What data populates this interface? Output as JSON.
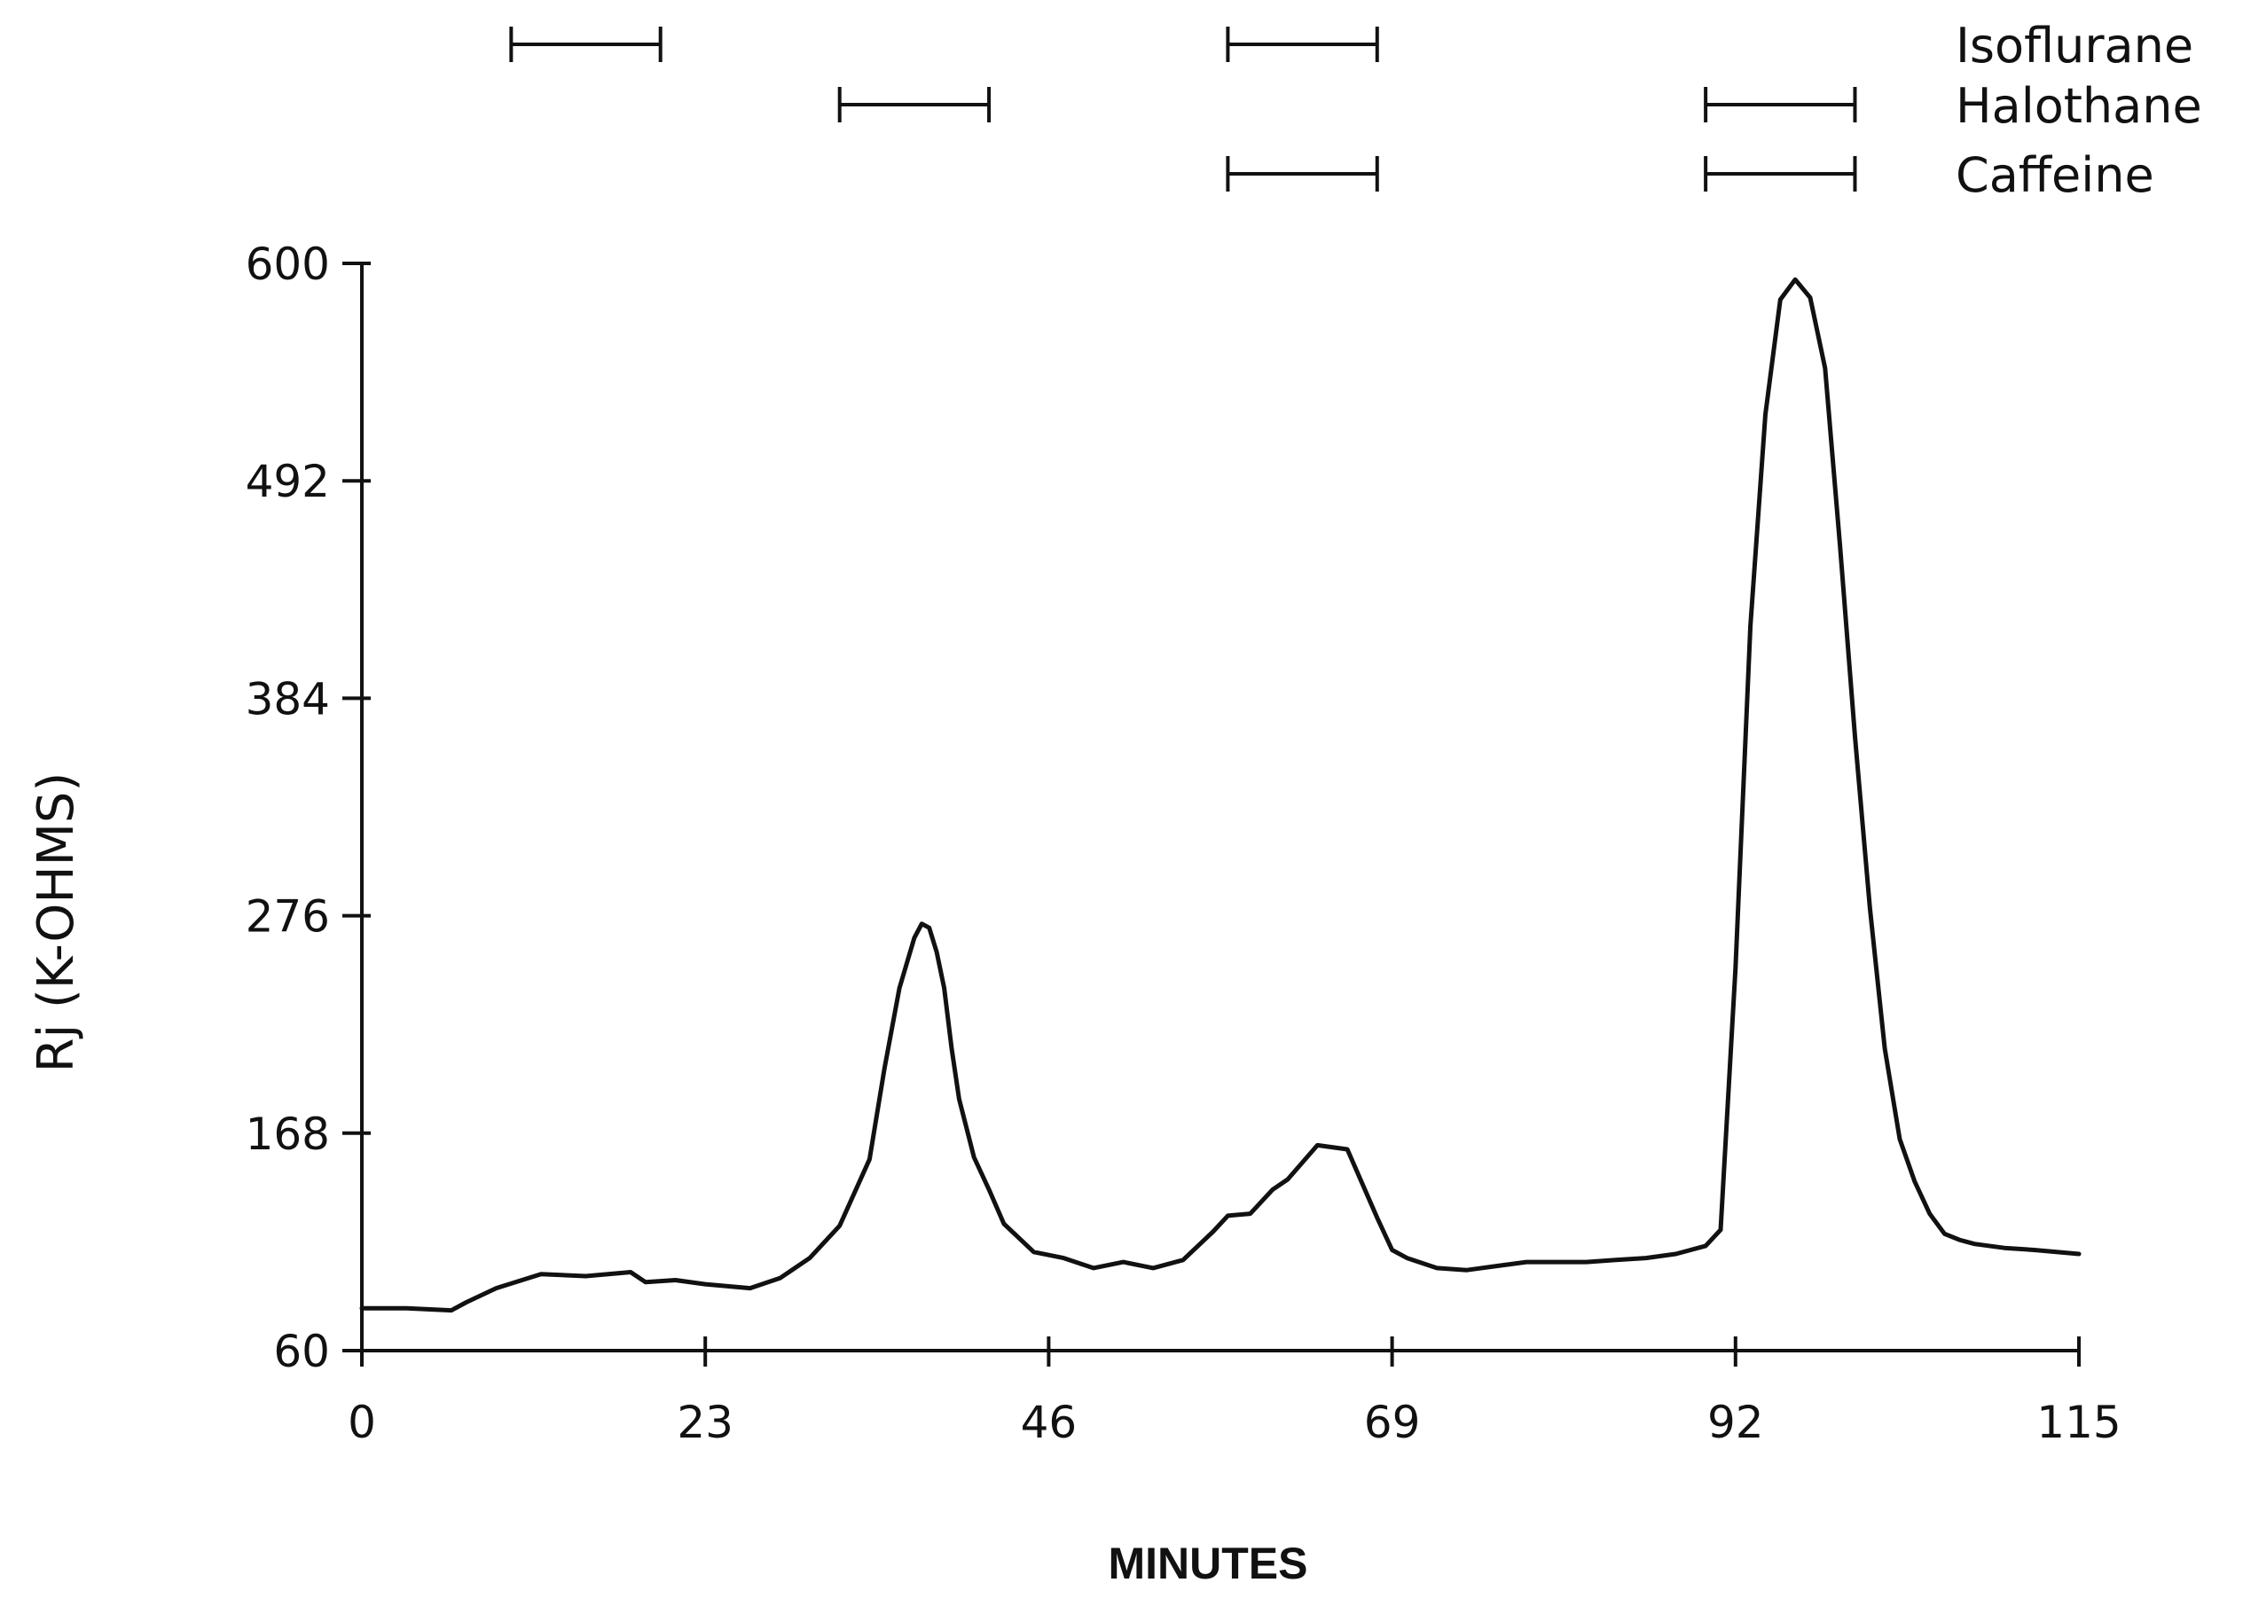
{
  "chart_data": {
    "type": "line",
    "title": "",
    "xlabel": "MINUTES",
    "ylabel": "Rj (K-OHMS)",
    "xlim": [
      0,
      115
    ],
    "ylim": [
      60,
      600
    ],
    "x_ticks": [
      0,
      23,
      46,
      69,
      92,
      115
    ],
    "y_ticks": [
      60,
      168,
      276,
      384,
      492,
      600
    ],
    "grid": false,
    "legend": "none",
    "series": [
      {
        "x": [
          0,
          3,
          6,
          7,
          9,
          12,
          15,
          18,
          19,
          21,
          23,
          26,
          28,
          30,
          32,
          34,
          35,
          36,
          37,
          37.5,
          38,
          38.5,
          39,
          39.5,
          40,
          41,
          42,
          43,
          45,
          47,
          49,
          51,
          53,
          55,
          57,
          58,
          59.5,
          61,
          62,
          64,
          66,
          68,
          69,
          70,
          72,
          74,
          76,
          78,
          80,
          82,
          84,
          86,
          88,
          90,
          91,
          92,
          93,
          94,
          95,
          96,
          97,
          98,
          99,
          100,
          101,
          102,
          103,
          104,
          105,
          106,
          107,
          108,
          110,
          112,
          115
        ],
        "y": [
          81,
          81,
          80,
          84,
          91,
          98,
          97,
          99,
          94,
          95,
          93,
          91,
          96,
          106,
          122,
          155,
          200,
          240,
          265,
          272,
          270,
          258,
          240,
          210,
          185,
          156,
          140,
          123,
          109,
          106,
          101,
          104,
          101,
          105,
          119,
          127,
          128,
          140,
          145,
          162,
          160,
          126,
          110,
          106,
          101,
          100,
          102,
          104,
          104,
          104,
          105,
          106,
          108,
          112,
          120,
          250,
          420,
          525,
          582,
          592,
          583,
          548,
          460,
          365,
          280,
          210,
          165,
          144,
          128,
          118,
          115,
          113,
          111,
          110,
          108
        ]
      }
    ],
    "annotations": [
      {
        "label": "Isoflurane",
        "intervals": [
          [
            10,
            20
          ],
          [
            58,
            68
          ]
        ]
      },
      {
        "label": "Halothane",
        "intervals": [
          [
            32,
            42
          ],
          [
            90,
            100
          ]
        ]
      },
      {
        "label": "Caffeine",
        "intervals": [
          [
            58,
            68
          ],
          [
            90,
            100
          ]
        ]
      }
    ]
  }
}
